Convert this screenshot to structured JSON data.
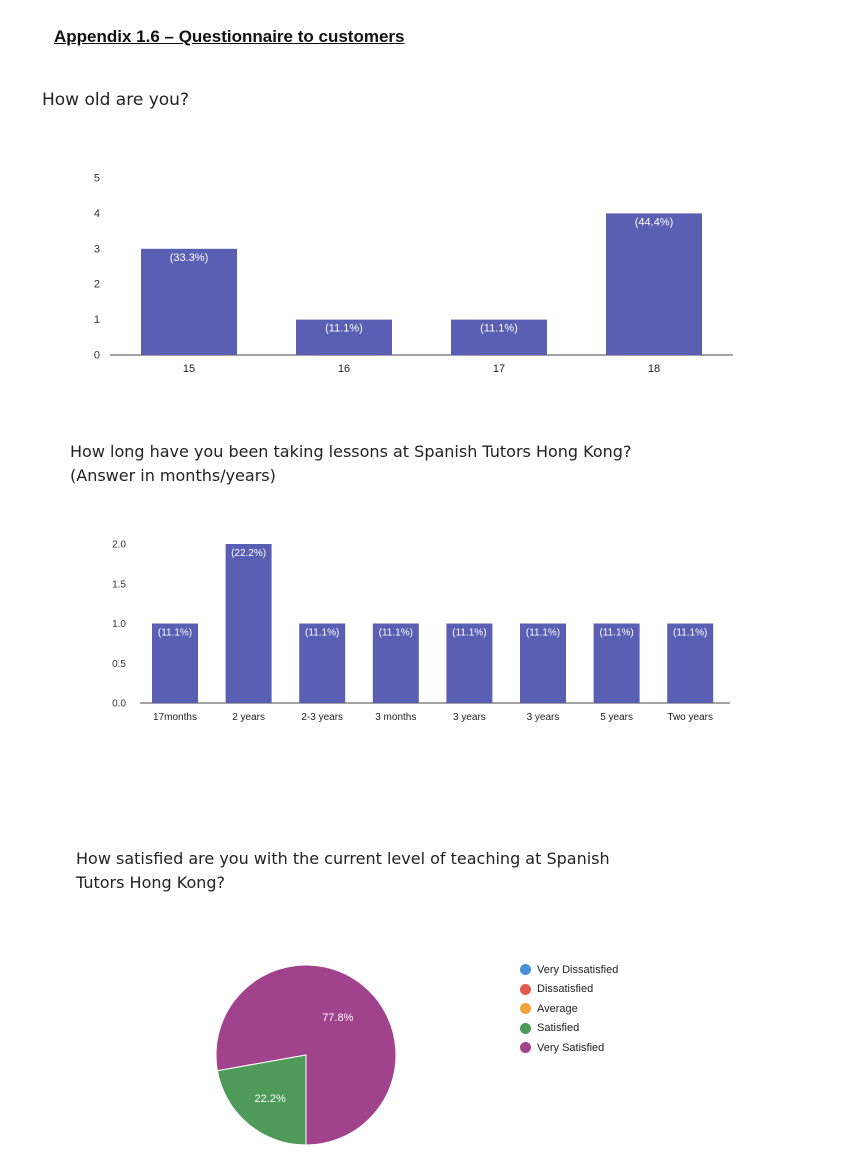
{
  "document": {
    "heading": "Appendix 1.6 – Questionnaire to customers"
  },
  "questions": {
    "q1": "How old are you?",
    "q2_line1": "How long have you been taking lessons at Spanish Tutors Hong Kong?",
    "q2_line2": "(Answer in months/years)",
    "q3_line1": "How satisfied are you with the current level of teaching at Spanish",
    "q3_line2": "Tutors Hong Kong?"
  },
  "colors": {
    "bar": "#5b5fb3",
    "axis": "#444444",
    "bar_label": "#ffffff",
    "very_dissatisfied": "#4a90d9",
    "dissatisfied": "#e05a4e",
    "average": "#f4a53a",
    "satisfied": "#4e9a58",
    "very_satisfied": "#a1428c"
  },
  "chart_data": [
    {
      "type": "bar",
      "title": "",
      "categories": [
        "15",
        "16",
        "17",
        "18"
      ],
      "values": [
        3,
        1,
        1,
        4
      ],
      "labels": [
        "(33.3%)",
        "(11.1%)",
        "(11.1%)",
        "(44.4%)"
      ],
      "ylim": [
        0,
        5
      ],
      "yticks": [
        "0",
        "1",
        "2",
        "3",
        "4",
        "5"
      ],
      "xlabel": "",
      "ylabel": "",
      "grid": false
    },
    {
      "type": "bar",
      "title": "",
      "categories": [
        "17months",
        "2 years",
        "2-3 years",
        "3 months",
        "3 years",
        "3 years",
        "5 years",
        "Two years"
      ],
      "values": [
        1,
        2,
        1,
        1,
        1,
        1,
        1,
        1
      ],
      "labels": [
        "(11.1%)",
        "(22.2%)",
        "(11.1%)",
        "(11.1%)",
        "(11.1%)",
        "(11.1%)",
        "(11.1%)",
        "(11.1%)"
      ],
      "ylim": [
        0,
        2
      ],
      "yticks": [
        "0.0",
        "0.5",
        "1.0",
        "1.5",
        "2.0"
      ],
      "xlabel": "",
      "ylabel": "",
      "grid": false
    },
    {
      "type": "pie",
      "title": "",
      "legend": [
        "Very Dissatisfied",
        "Dissatisfied",
        "Average",
        "Satisfied",
        "Very Satisfied"
      ],
      "slices": [
        {
          "name": "Very Satisfied",
          "value": 77.8,
          "label": "77.8%"
        },
        {
          "name": "Satisfied",
          "value": 22.2,
          "label": "22.2%"
        }
      ],
      "legend_position": "right"
    }
  ]
}
